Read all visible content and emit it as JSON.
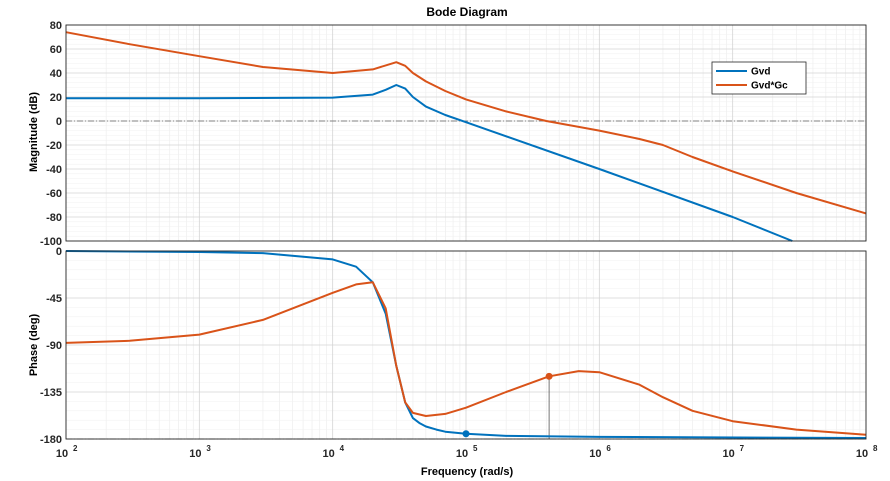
{
  "chart_data": {
    "type": "line",
    "title": "Bode Diagram",
    "xlabel": "Frequency  (rad/s)",
    "xscale": "log",
    "xlim": [
      100,
      100000000
    ],
    "x_tick_labels": [
      "10",
      "10",
      "10",
      "10",
      "10",
      "10",
      "10"
    ],
    "x_tick_exponents": [
      "2",
      "3",
      "4",
      "5",
      "6",
      "7",
      "8"
    ],
    "grid": true,
    "legend": {
      "placement": "top-right",
      "entries": [
        "Gvd",
        "Gvd*Gc"
      ]
    },
    "colors": {
      "Gvd": "#0072BD",
      "Gvd*Gc": "#D95319",
      "zero_line": "#808080"
    },
    "panels": [
      {
        "ylabel": "Magnitude (dB)",
        "ylim": [
          -100,
          80
        ],
        "y_ticks": [
          "80",
          "60",
          "40",
          "20",
          "0",
          "-20",
          "-40",
          "-60",
          "-80",
          "-100"
        ],
        "series": [
          {
            "name": "Gvd",
            "x": [
              100,
              1000,
              10000,
              20000,
              25000,
              30000,
              35000,
              40000,
              50000,
              70000,
              100000,
              1000000,
              10000000,
              28000000
            ],
            "y": [
              19,
              19,
              19.5,
              22,
              26,
              30,
              27,
              20,
              12,
              5,
              -1,
              -40,
              -80,
              -100
            ]
          },
          {
            "name": "Gvd*Gc",
            "x": [
              100,
              300,
              1000,
              3000,
              10000,
              20000,
              30000,
              35000,
              40000,
              50000,
              70000,
              100000,
              200000,
              400000,
              1000000,
              2000000,
              3000000,
              5000000,
              10000000,
              30000000,
              100000000
            ],
            "y": [
              74,
              64,
              54,
              45,
              40,
              43,
              49,
              46,
              40,
              33,
              25,
              18,
              8,
              0,
              -8,
              -15,
              -20,
              -30,
              -42,
              -60,
              -77
            ]
          }
        ]
      },
      {
        "ylabel": "Phase (deg)",
        "ylim": [
          -180,
          0
        ],
        "y_ticks": [
          "0",
          "-45",
          "-90",
          "-135",
          "-180"
        ],
        "series": [
          {
            "name": "Gvd",
            "x": [
              100,
              1000,
              3000,
              10000,
              15000,
              20000,
              25000,
              30000,
              35000,
              40000,
              45000,
              50000,
              60000,
              70000,
              100000,
              200000,
              1000000,
              100000000
            ],
            "y": [
              0,
              -1,
              -2,
              -8,
              -15,
              -30,
              -60,
              -110,
              -145,
              -160,
              -165,
              -168,
              -171,
              -173,
              -175,
              -177,
              -178,
              -179
            ]
          },
          {
            "name": "Gvd*Gc",
            "x": [
              100,
              300,
              1000,
              3000,
              10000,
              15000,
              20000,
              25000,
              30000,
              35000,
              40000,
              50000,
              70000,
              100000,
              200000,
              420000,
              700000,
              1000000,
              2000000,
              3000000,
              5000000,
              10000000,
              30000000,
              100000000
            ],
            "y": [
              -88,
              -86,
              -80,
              -66,
              -40,
              -32,
              -30,
              -55,
              -110,
              -145,
              -155,
              -158,
              -156,
              -150,
              -135,
              -120,
              -115,
              -116,
              -128,
              -140,
              -153,
              -163,
              -171,
              -176
            ]
          }
        ],
        "markers": [
          {
            "series": "Gvd",
            "x": 100000,
            "y": -175
          },
          {
            "series": "Gvd*Gc",
            "x": 420000,
            "y": -120
          }
        ],
        "annotations": [
          {
            "type": "vertical-line",
            "x": 420000,
            "from": -180,
            "to": -120
          }
        ]
      }
    ]
  }
}
